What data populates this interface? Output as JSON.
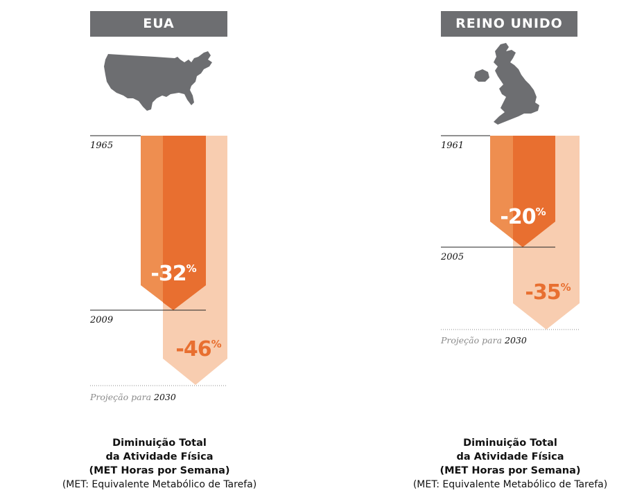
{
  "chart_data": [
    {
      "type": "bar",
      "title": "EUA",
      "start_year": "1965",
      "end_year": "2009",
      "projection_year": "2030",
      "projection_label": "Projeção para",
      "values": [
        -32,
        -46
      ],
      "labels": [
        "-32",
        "-46"
      ],
      "unit": "%",
      "colors": {
        "dark": "#e86f30",
        "light_stripe": "#ee8e50",
        "pale": "#f8cdb0",
        "title_bg": "#6d6e71",
        "label_projection": "#e86f30"
      }
    },
    {
      "type": "bar",
      "title": "REINO UNIDO",
      "start_year": "1961",
      "end_year": "2005",
      "projection_year": "2030",
      "projection_label": "Projeção para",
      "values": [
        -20,
        -35
      ],
      "labels": [
        "-20",
        "-35"
      ],
      "unit": "%",
      "colors": {
        "dark": "#e86f30",
        "light_stripe": "#ee8e50",
        "pale": "#f8cdb0",
        "title_bg": "#6d6e71",
        "label_projection": "#e86f30"
      }
    }
  ],
  "caption": {
    "line1": "Diminuição Total",
    "line2": "da Atividade Física",
    "line3": "(MET Horas por Semana)",
    "line4": "(MET: Equivalente Metabólico de Tarefa)"
  },
  "icons": [
    "usa-map-icon",
    "uk-map-icon"
  ]
}
